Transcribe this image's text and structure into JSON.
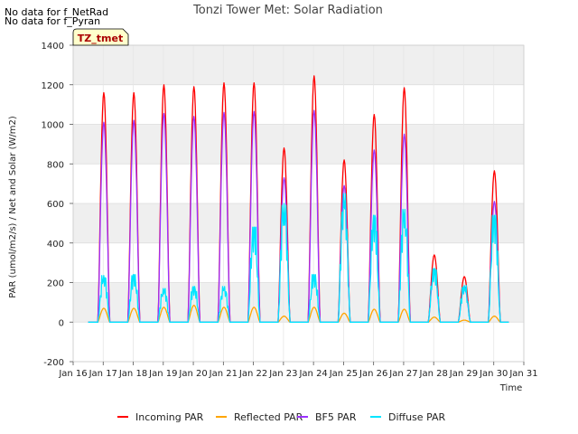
{
  "notes": [
    "No data for f_NetRad",
    "No data for f_Pyran"
  ],
  "badge": "TZ_tmet",
  "chart_data": {
    "type": "line",
    "title": "Tonzi Tower Met: Solar Radiation",
    "xlabel": "Time",
    "ylabel": "PAR (umol/m2/s) / Net and Solar (W/m2)",
    "xlim": [
      16,
      31
    ],
    "ylim": [
      -200,
      1400
    ],
    "xticks": [
      16,
      17,
      18,
      19,
      20,
      21,
      22,
      23,
      24,
      25,
      26,
      27,
      28,
      29,
      30,
      31
    ],
    "xtick_labels": [
      "Jan 16",
      "Jan 17",
      "Jan 18",
      "Jan 19",
      "Jan 20",
      "Jan 21",
      "Jan 22",
      "Jan 23",
      "Jan 24",
      "Jan 25",
      "Jan 26",
      "Jan 27",
      "Jan 28",
      "Jan 29",
      "Jan 30",
      "Jan 31"
    ],
    "yticks": [
      -200,
      0,
      200,
      400,
      600,
      800,
      1000,
      1200,
      1400
    ],
    "grid": true,
    "legend_position": "bottom",
    "day_start": 16.5,
    "daily_sunrise_offset": 0.32,
    "daily_sunset_offset": 0.72,
    "days": [
      "Jan 16",
      "Jan 17",
      "Jan 18",
      "Jan 19",
      "Jan 20",
      "Jan 21",
      "Jan 22",
      "Jan 23",
      "Jan 24",
      "Jan 25",
      "Jan 26",
      "Jan 27",
      "Jan 28",
      "Jan 29"
    ],
    "series": [
      {
        "name": "Incoming PAR",
        "color": "#ff0000",
        "daily_peaks": [
          1160,
          1160,
          1200,
          1190,
          1210,
          1210,
          880,
          1245,
          820,
          1050,
          1185,
          340,
          230,
          765
        ]
      },
      {
        "name": "Reflected PAR",
        "color": "#ffa500",
        "daily_peaks": [
          70,
          70,
          75,
          85,
          75,
          75,
          30,
          75,
          45,
          65,
          65,
          25,
          10,
          30
        ]
      },
      {
        "name": "BF5 PAR",
        "color": "#9b30ff",
        "daily_peaks": [
          1010,
          1020,
          1055,
          1040,
          1060,
          1065,
          730,
          1070,
          690,
          870,
          950,
          270,
          180,
          610
        ]
      },
      {
        "name": "Diffuse PAR",
        "color": "#00e5ff",
        "daily_peaks": [
          235,
          240,
          170,
          180,
          180,
          480,
          600,
          240,
          650,
          540,
          570,
          270,
          185,
          540
        ]
      }
    ]
  }
}
